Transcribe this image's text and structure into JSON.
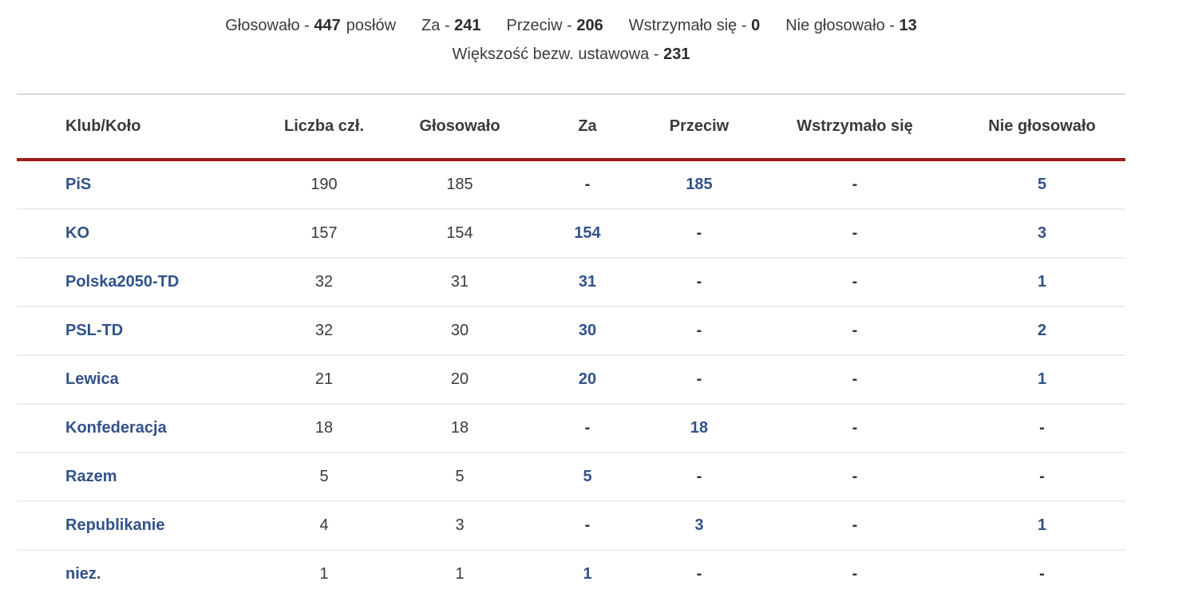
{
  "summary": {
    "items": [
      {
        "label": "Głosowało - ",
        "value": "447",
        "suffix": "posłów"
      },
      {
        "label": "Za - ",
        "value": "241",
        "suffix": ""
      },
      {
        "label": "Przeciw - ",
        "value": "206",
        "suffix": ""
      },
      {
        "label": "Wstrzymało się - ",
        "value": "0",
        "suffix": ""
      },
      {
        "label": "Nie głosowało - ",
        "value": "13",
        "suffix": ""
      }
    ],
    "majority_label": "Większość bezw. ustawowa - ",
    "majority_value": "231"
  },
  "table": {
    "headers": {
      "club": "Klub/Koło",
      "members": "Liczba czł.",
      "voted": "Głosowało",
      "za": "Za",
      "przeciw": "Przeciw",
      "wstrzymalo": "Wstrzymało się",
      "nie_glosowalo": "Nie głosowało"
    },
    "rows": [
      {
        "club": "PiS",
        "members": "190",
        "voted": "185",
        "za": "-",
        "przeciw": "185",
        "wstrzymalo": "-",
        "nie_glosowalo": "5"
      },
      {
        "club": "KO",
        "members": "157",
        "voted": "154",
        "za": "154",
        "przeciw": "-",
        "wstrzymalo": "-",
        "nie_glosowalo": "3"
      },
      {
        "club": "Polska2050-TD",
        "members": "32",
        "voted": "31",
        "za": "31",
        "przeciw": "-",
        "wstrzymalo": "-",
        "nie_glosowalo": "1"
      },
      {
        "club": "PSL-TD",
        "members": "32",
        "voted": "30",
        "za": "30",
        "przeciw": "-",
        "wstrzymalo": "-",
        "nie_glosowalo": "2"
      },
      {
        "club": "Lewica",
        "members": "21",
        "voted": "20",
        "za": "20",
        "przeciw": "-",
        "wstrzymalo": "-",
        "nie_glosowalo": "1"
      },
      {
        "club": "Konfederacja",
        "members": "18",
        "voted": "18",
        "za": "-",
        "przeciw": "18",
        "wstrzymalo": "-",
        "nie_glosowalo": "-"
      },
      {
        "club": "Razem",
        "members": "5",
        "voted": "5",
        "za": "5",
        "przeciw": "-",
        "wstrzymalo": "-",
        "nie_glosowalo": "-"
      },
      {
        "club": "Republikanie",
        "members": "4",
        "voted": "3",
        "za": "-",
        "przeciw": "3",
        "wstrzymalo": "-",
        "nie_glosowalo": "1"
      },
      {
        "club": "niez.",
        "members": "1",
        "voted": "1",
        "za": "1",
        "przeciw": "-",
        "wstrzymalo": "-",
        "nie_glosowalo": "-"
      }
    ]
  },
  "colors": {
    "accent_blue": "#315289",
    "rule_red": "#9c1e17",
    "rule_gray": "#d9d9d9",
    "row_divider": "#ededed",
    "text_dark": "#3b3b3b"
  }
}
